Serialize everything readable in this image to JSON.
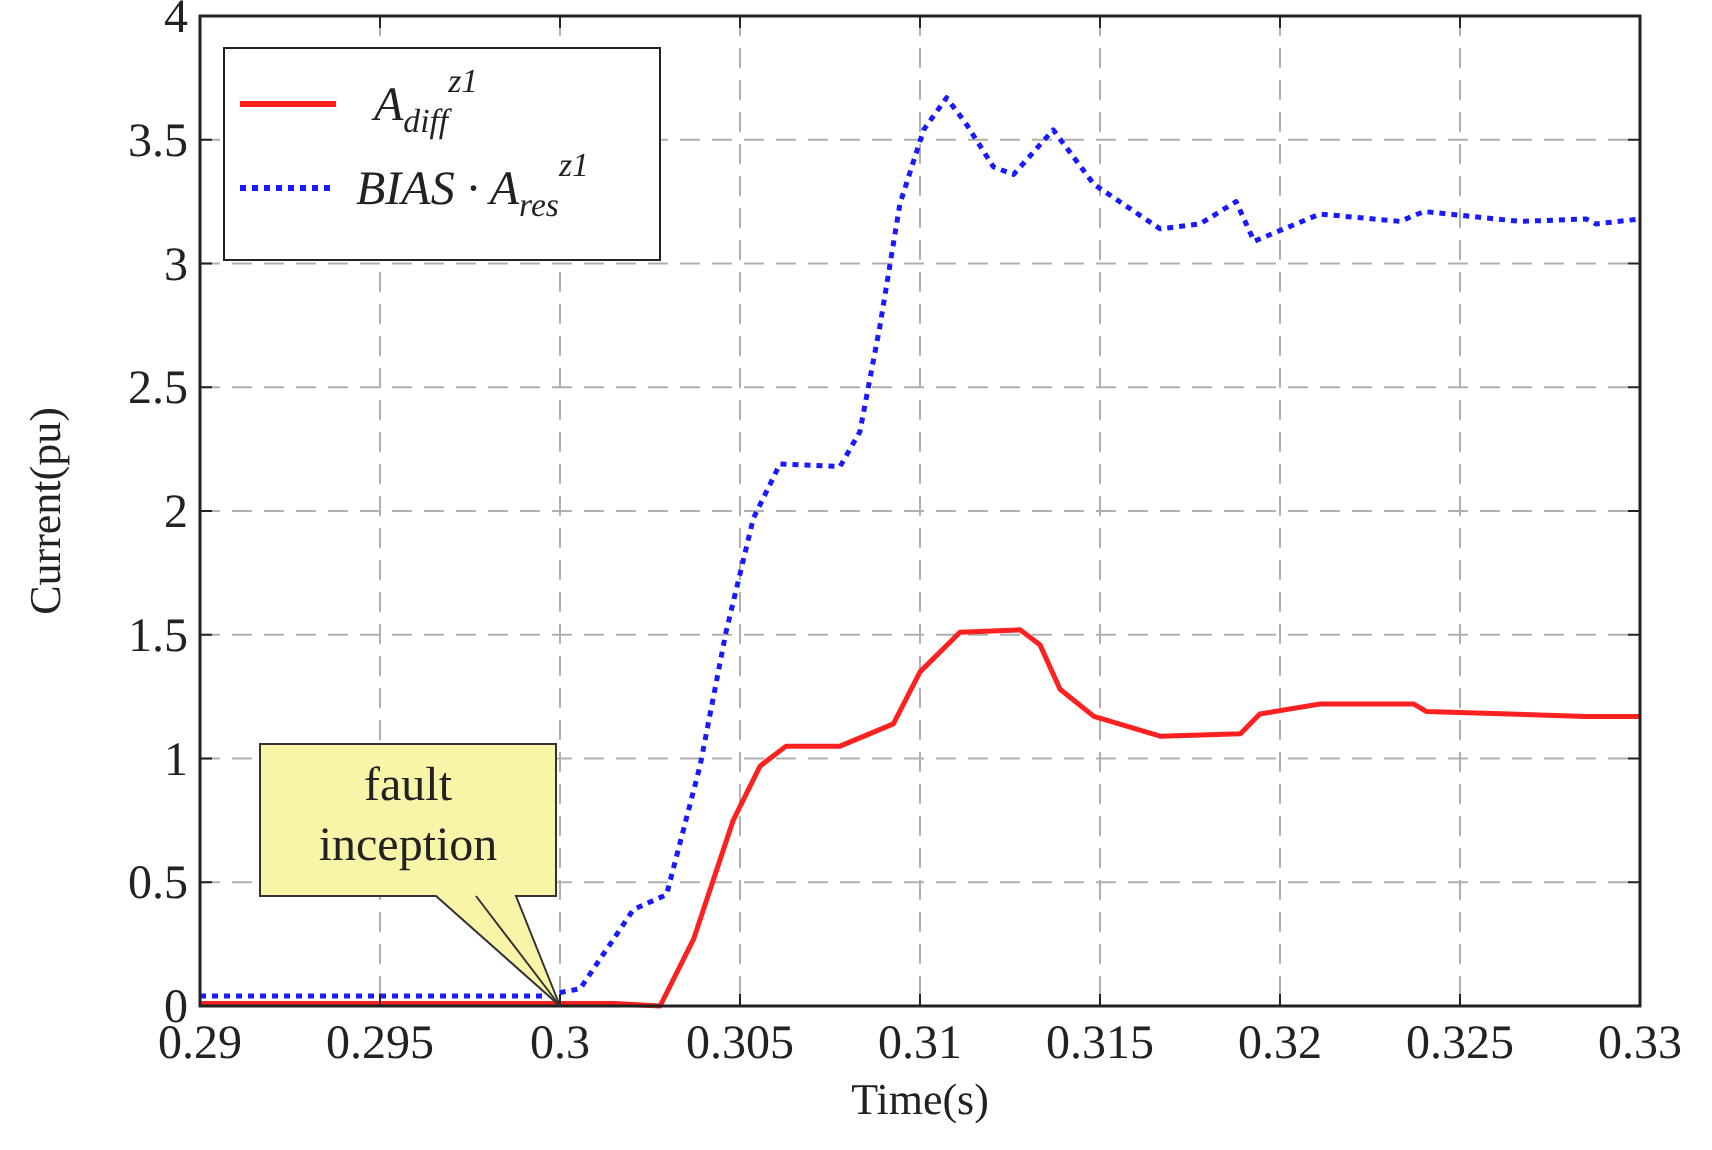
{
  "chart_data": {
    "type": "line",
    "xlabel": "Time(s)",
    "ylabel": "Current(pu)",
    "xlim": [
      0.29,
      0.33
    ],
    "xticks": [
      0.29,
      0.295,
      0.3,
      0.305,
      0.31,
      0.315,
      0.32,
      0.325,
      0.33
    ],
    "ylim": [
      0,
      4
    ],
    "yticks": [
      0,
      0.5,
      1,
      1.5,
      2,
      2.5,
      3,
      3.5,
      4
    ],
    "grid": true,
    "legend": "top left",
    "marker": "none",
    "annotations": [
      {
        "text": "fault\ninception",
        "x": 0.3,
        "y": 0
      }
    ],
    "series": [
      {
        "name": "A$_{diff}$$^{z1}$",
        "color": "#ff2020",
        "line_style": "solid",
        "x": [
          0.29,
          0.295,
          0.3,
          0.3015,
          0.30278,
          0.30371,
          0.30481,
          0.30556,
          0.30628,
          0.30778,
          0.30926,
          0.31,
          0.31111,
          0.31278,
          0.31333,
          0.31389,
          0.31483,
          0.31667,
          0.3189,
          0.31944,
          0.32111,
          0.32372,
          0.32406,
          0.3285,
          0.33
        ],
        "values": [
          0.01,
          0.01,
          0.01,
          0.01,
          0.0,
          0.27,
          0.75,
          0.97,
          1.05,
          1.05,
          1.14,
          1.35,
          1.51,
          1.52,
          1.46,
          1.28,
          1.17,
          1.09,
          1.1,
          1.18,
          1.22,
          1.22,
          1.19,
          1.17,
          1.17
        ]
      },
      {
        "name": "BIAS · A$_{res}$$^{z1}$",
        "color": "#1a1aff",
        "line_style": "dotted",
        "x": [
          0.29,
          0.295,
          0.2995,
          0.30056,
          0.30204,
          0.30296,
          0.30389,
          0.30461,
          0.30537,
          0.30611,
          0.30778,
          0.30833,
          0.30889,
          0.30944,
          0.3101,
          0.31074,
          0.3113,
          0.31204,
          0.3126,
          0.3137,
          0.31483,
          0.31667,
          0.31778,
          0.31878,
          0.31928,
          0.32111,
          0.32333,
          0.324,
          0.32667,
          0.3285,
          0.32878,
          0.33
        ],
        "values": [
          0.04,
          0.04,
          0.04,
          0.07,
          0.39,
          0.45,
          0.97,
          1.51,
          1.97,
          2.19,
          2.18,
          2.32,
          2.75,
          3.24,
          3.54,
          3.67,
          3.56,
          3.39,
          3.36,
          3.54,
          3.32,
          3.14,
          3.16,
          3.25,
          3.09,
          3.2,
          3.17,
          3.21,
          3.17,
          3.18,
          3.16,
          3.18
        ]
      }
    ]
  }
}
